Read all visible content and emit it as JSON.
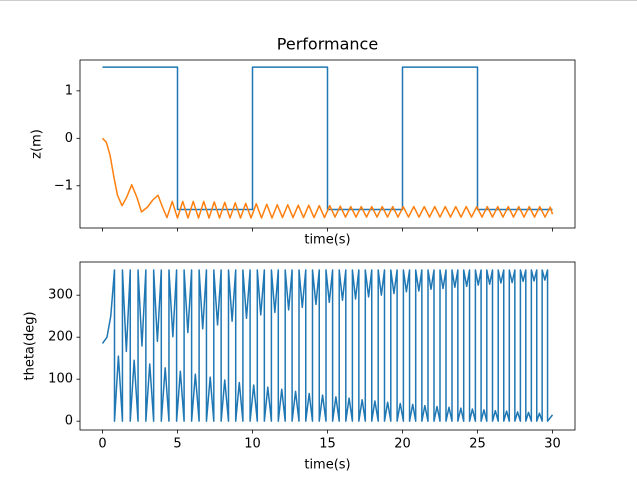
{
  "chart_data": [
    {
      "type": "line",
      "title": "Performance",
      "x_label": "time(s)",
      "y_label": "z(m)",
      "xlim": [
        -1.5,
        31.5
      ],
      "ylim": [
        -1.89,
        1.65
      ],
      "xticks": [
        0,
        5,
        10,
        15,
        20,
        25,
        30
      ],
      "xtick_labels": false,
      "yticks": [
        {
          "value": -1,
          "label": "−1"
        },
        0,
        1
      ],
      "series": [
        {
          "color": "#1f77b4",
          "x": [
            0,
            5,
            5,
            10,
            10,
            15,
            15,
            20,
            20,
            25,
            25,
            30
          ],
          "values": [
            1.5,
            1.5,
            -1.5,
            -1.5,
            1.5,
            1.5,
            -1.5,
            -1.5,
            1.5,
            1.5,
            -1.5,
            -1.5
          ]
        },
        {
          "color": "#ff7f0e",
          "x": [
            0,
            0.25,
            0.5,
            0.75,
            1.0,
            1.3,
            1.6,
            1.95,
            2.3,
            2.6,
            3.0,
            3.35,
            3.7,
            4.0,
            4.3,
            4.65,
            5.0,
            5.35,
            5.7,
            6.05,
            6.4,
            6.75,
            7.1,
            7.45,
            7.8,
            8.15,
            8.5,
            8.85,
            9.2,
            9.55,
            9.9,
            10.25,
            10.6,
            10.95,
            11.3,
            11.65,
            12.0,
            12.35,
            12.7,
            13.05,
            13.4,
            13.75,
            14.1,
            14.45,
            14.8,
            15.15,
            15.5,
            15.85,
            16.2,
            16.55,
            16.9,
            17.25,
            17.6,
            17.95,
            18.3,
            18.65,
            19.0,
            19.35,
            19.7,
            20.05,
            20.4,
            20.75,
            21.1,
            21.45,
            21.8,
            22.15,
            22.5,
            22.85,
            23.2,
            23.55,
            23.9,
            24.25,
            24.6,
            24.95,
            25.3,
            25.65,
            26.0,
            26.35,
            26.7,
            27.05,
            27.4,
            27.75,
            28.1,
            28.45,
            28.8,
            29.15,
            29.5,
            29.85,
            30
          ],
          "values": [
            0,
            -0.08,
            -0.35,
            -0.8,
            -1.2,
            -1.42,
            -1.25,
            -0.98,
            -1.25,
            -1.55,
            -1.45,
            -1.3,
            -1.2,
            -1.45,
            -1.67,
            -1.33,
            -1.68,
            -1.33,
            -1.68,
            -1.33,
            -1.68,
            -1.33,
            -1.68,
            -1.34,
            -1.68,
            -1.35,
            -1.68,
            -1.36,
            -1.68,
            -1.37,
            -1.68,
            -1.38,
            -1.68,
            -1.39,
            -1.68,
            -1.4,
            -1.67,
            -1.4,
            -1.67,
            -1.41,
            -1.67,
            -1.41,
            -1.67,
            -1.42,
            -1.67,
            -1.42,
            -1.66,
            -1.43,
            -1.66,
            -1.44,
            -1.66,
            -1.44,
            -1.66,
            -1.44,
            -1.66,
            -1.44,
            -1.66,
            -1.44,
            -1.66,
            -1.44,
            -1.66,
            -1.44,
            -1.66,
            -1.44,
            -1.66,
            -1.44,
            -1.66,
            -1.44,
            -1.66,
            -1.44,
            -1.66,
            -1.44,
            -1.66,
            -1.44,
            -1.66,
            -1.44,
            -1.66,
            -1.44,
            -1.66,
            -1.44,
            -1.66,
            -1.44,
            -1.66,
            -1.44,
            -1.66,
            -1.44,
            -1.66,
            -1.45,
            -1.6
          ]
        }
      ]
    },
    {
      "type": "line",
      "x_label": "time(s)",
      "y_label": "theta(deg)",
      "xlim": [
        -1.5,
        31.5
      ],
      "ylim": [
        -21,
        379
      ],
      "xticks": [
        0,
        5,
        10,
        15,
        20,
        25,
        30
      ],
      "xtick_labels": true,
      "yticks": [
        0,
        100,
        200,
        300
      ],
      "series": [
        {
          "color": "#1f77b4",
          "x": [
            0,
            0.3,
            0.55,
            0.8,
            0.8,
            1.06,
            1.33,
            1.33,
            1.59,
            1.85,
            1.85,
            2.11,
            2.37,
            2.37,
            2.63,
            2.89,
            2.89,
            3.15,
            3.41,
            3.41,
            3.66,
            3.92,
            3.92,
            4.18,
            4.43,
            4.43,
            4.69,
            4.94,
            4.94,
            5.19,
            5.44,
            5.44,
            5.69,
            5.94,
            5.94,
            6.19,
            6.44,
            6.44,
            6.68,
            6.93,
            6.93,
            7.18,
            7.42,
            7.42,
            7.67,
            7.91,
            7.91,
            8.15,
            8.4,
            8.4,
            8.64,
            8.88,
            8.88,
            9.12,
            9.36,
            9.36,
            9.6,
            9.84,
            9.84,
            10.08,
            10.32,
            10.32,
            10.55,
            10.79,
            10.79,
            11.02,
            11.26,
            11.26,
            11.49,
            11.72,
            11.72,
            11.95,
            12.18,
            12.18,
            12.41,
            12.64,
            12.64,
            12.87,
            13.1,
            13.1,
            13.32,
            13.55,
            13.55,
            13.78,
            14.0,
            14.0,
            14.23,
            14.45,
            14.45,
            14.67,
            14.9,
            14.9,
            15.12,
            15.34,
            15.34,
            15.56,
            15.78,
            15.78,
            16.0,
            16.22,
            16.22,
            16.44,
            16.66,
            16.66,
            16.87,
            17.09,
            17.09,
            17.31,
            17.52,
            17.52,
            17.74,
            17.95,
            17.95,
            18.16,
            18.38,
            18.38,
            18.59,
            18.8,
            18.8,
            19.01,
            19.22,
            19.22,
            19.43,
            19.64,
            19.64,
            19.85,
            20.06,
            20.06,
            20.26,
            20.47,
            20.47,
            20.68,
            20.88,
            20.88,
            21.09,
            21.29,
            21.29,
            21.49,
            21.7,
            21.7,
            21.9,
            22.1,
            22.1,
            22.3,
            22.5,
            22.5,
            22.7,
            22.9,
            22.9,
            23.1,
            23.3,
            23.3,
            23.49,
            23.69,
            23.69,
            23.89,
            24.08,
            24.08,
            24.28,
            24.47,
            24.47,
            24.66,
            24.86,
            24.86,
            25.05,
            25.24,
            25.24,
            25.43,
            25.62,
            25.62,
            25.81,
            26.0,
            26.0,
            26.19,
            26.38,
            26.38,
            26.56,
            26.75,
            26.75,
            26.94,
            27.12,
            27.12,
            27.31,
            27.49,
            27.49,
            27.67,
            27.86,
            27.86,
            28.04,
            28.22,
            28.22,
            28.4,
            28.59,
            28.59,
            28.77,
            28.95,
            28.95,
            29.13,
            29.31,
            29.31,
            29.49,
            29.67,
            29.67,
            30.0
          ],
          "values": [
            185,
            200,
            250,
            360,
            0,
            155,
            0,
            360,
            166,
            360,
            0,
            145,
            0,
            360,
            179,
            360,
            0,
            136,
            0,
            360,
            190,
            360,
            0,
            127,
            0,
            360,
            201,
            360,
            0,
            119,
            0,
            360,
            211,
            360,
            0,
            112,
            0,
            360,
            220,
            360,
            0,
            105,
            0,
            360,
            229,
            360,
            0,
            98,
            0,
            360,
            238,
            360,
            0,
            92,
            0,
            360,
            245,
            360,
            0,
            86,
            0,
            360,
            253,
            360,
            0,
            81,
            0,
            360,
            259,
            360,
            0,
            76,
            0,
            360,
            265,
            360,
            0,
            71,
            0,
            360,
            271,
            360,
            0,
            66,
            0,
            360,
            278,
            360,
            0,
            62,
            0,
            360,
            283,
            360,
            0,
            58,
            0,
            360,
            288,
            360,
            0,
            55,
            0,
            360,
            291,
            360,
            0,
            51,
            0,
            360,
            296,
            360,
            0,
            48,
            0,
            360,
            300,
            360,
            0,
            45,
            0,
            360,
            304,
            360,
            0,
            42,
            0,
            360,
            308,
            360,
            0,
            40,
            0,
            360,
            310,
            360,
            0,
            37,
            0,
            360,
            314,
            360,
            0,
            35,
            0,
            360,
            316,
            360,
            0,
            33,
            0,
            360,
            319,
            360,
            0,
            31,
            0,
            360,
            321,
            360,
            0,
            29,
            0,
            360,
            324,
            360,
            0,
            27,
            0,
            360,
            326,
            360,
            0,
            25,
            0,
            360,
            329,
            360,
            0,
            24,
            0,
            360,
            330,
            360,
            0,
            22,
            0,
            360,
            333,
            360,
            0,
            21,
            0,
            360,
            334,
            360,
            0,
            19,
            0,
            360,
            336,
            360,
            0,
            15
          ]
        }
      ]
    }
  ]
}
